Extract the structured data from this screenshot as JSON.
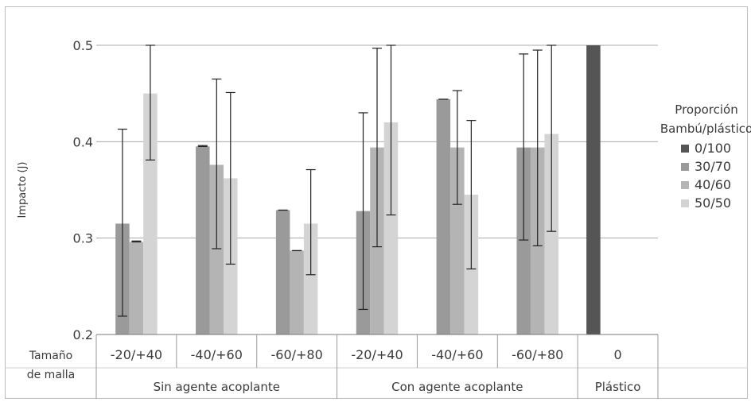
{
  "chart_data": {
    "type": "bar",
    "ylabel": "Impacto (J)",
    "ylim": [
      0.2,
      0.5
    ],
    "yticks": [
      "0.2",
      "0.3",
      "0.4",
      "0.5"
    ],
    "grid": true,
    "legend": {
      "position": "right",
      "title_lines": [
        "Proporción",
        "Bambú/plástico"
      ],
      "items": [
        {
          "name": "0/100",
          "color": "#555555"
        },
        {
          "name": "30/70",
          "color": "#9a9a9a"
        },
        {
          "name": "40/60",
          "color": "#b4b4b4"
        },
        {
          "name": "50/50",
          "color": "#d4d4d4"
        }
      ]
    },
    "mesh_header_lines": [
      "Tamaño",
      "de malla"
    ],
    "categories": [
      "-20/+40",
      "-40/+60",
      "-60/+80",
      "-20/+40",
      "-40/+60",
      "-60/+80",
      "0"
    ],
    "groups": [
      {
        "label": "Sin agente acoplante",
        "categories": [
          0,
          1,
          2
        ]
      },
      {
        "label": "Con agente acoplante",
        "categories": [
          3,
          4,
          5
        ]
      },
      {
        "label": "Plástico",
        "categories": [
          6
        ]
      }
    ],
    "series": [
      {
        "name": "0/100",
        "color": "#555555",
        "values": [
          null,
          null,
          null,
          null,
          null,
          null,
          0.5
        ],
        "err_low": [
          null,
          null,
          null,
          null,
          null,
          null,
          null
        ],
        "err_high": [
          null,
          null,
          null,
          null,
          null,
          null,
          null
        ]
      },
      {
        "name": "30/70",
        "color": "#9a9a9a",
        "values": [
          0.315,
          0.395,
          0.329,
          0.328,
          0.444,
          0.394,
          null
        ],
        "err_low": [
          0.219,
          0.395,
          0.329,
          0.226,
          0.444,
          0.298,
          null
        ],
        "err_high": [
          0.413,
          0.396,
          0.329,
          0.43,
          0.444,
          0.491,
          null
        ]
      },
      {
        "name": "40/60",
        "color": "#b4b4b4",
        "values": [
          0.296,
          0.376,
          0.287,
          0.394,
          0.394,
          0.394,
          null
        ],
        "err_low": [
          0.296,
          0.289,
          0.287,
          0.291,
          0.335,
          0.292,
          null
        ],
        "err_high": [
          0.297,
          0.465,
          0.287,
          0.497,
          0.453,
          0.495,
          null
        ]
      },
      {
        "name": "50/50",
        "color": "#d4d4d4",
        "values": [
          0.45,
          0.362,
          0.315,
          0.42,
          0.345,
          0.408,
          null
        ],
        "err_low": [
          0.381,
          0.273,
          0.262,
          0.324,
          0.268,
          0.307,
          null
        ],
        "err_high": [
          0.5,
          0.451,
          0.371,
          0.5,
          0.422,
          0.5,
          null
        ]
      }
    ]
  }
}
